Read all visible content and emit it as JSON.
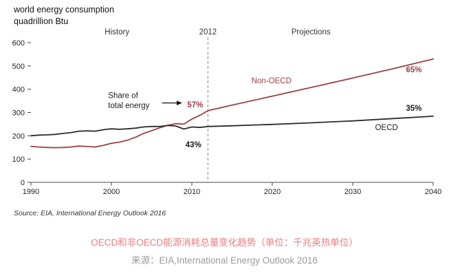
{
  "chart_data": {
    "type": "line",
    "title": "world energy consumption",
    "subtitle": "quadrillion Btu",
    "xlabel": "",
    "ylabel": "quadrillion Btu",
    "x_range": [
      1990,
      2040
    ],
    "y_range": [
      0,
      600
    ],
    "x_ticks": [
      1990,
      2000,
      2010,
      2020,
      2030,
      2040
    ],
    "y_ticks": [
      0,
      100,
      200,
      300,
      400,
      500,
      600
    ],
    "grid": false,
    "divider_year": 2012,
    "header_labels": [
      {
        "text": "History",
        "year": 2000.7
      },
      {
        "text": "2012",
        "year": 2012
      },
      {
        "text": "Projections",
        "year": 2024.8
      }
    ],
    "series": [
      {
        "name": "Non-OECD",
        "color": "#9e3e44",
        "points": [
          [
            1990,
            155
          ],
          [
            1991,
            152
          ],
          [
            1992,
            150
          ],
          [
            1993,
            149
          ],
          [
            1994,
            150
          ],
          [
            1995,
            152
          ],
          [
            1996,
            156
          ],
          [
            1997,
            154
          ],
          [
            1998,
            152
          ],
          [
            1999,
            159
          ],
          [
            2000,
            168
          ],
          [
            2001,
            173
          ],
          [
            2002,
            181
          ],
          [
            2003,
            194
          ],
          [
            2004,
            210
          ],
          [
            2005,
            222
          ],
          [
            2006,
            234
          ],
          [
            2007,
            245
          ],
          [
            2008,
            252
          ],
          [
            2009,
            250
          ],
          [
            2010,
            272
          ],
          [
            2011,
            288
          ],
          [
            2012,
            308
          ],
          [
            2015,
            332
          ],
          [
            2020,
            370
          ],
          [
            2025,
            409
          ],
          [
            2030,
            448
          ],
          [
            2035,
            488
          ],
          [
            2040,
            530
          ]
        ]
      },
      {
        "name": "OECD",
        "color": "#2b2b2b",
        "points": [
          [
            1990,
            200
          ],
          [
            1991,
            203
          ],
          [
            1992,
            204
          ],
          [
            1993,
            206
          ],
          [
            1994,
            210
          ],
          [
            1995,
            214
          ],
          [
            1996,
            220
          ],
          [
            1997,
            221
          ],
          [
            1998,
            220
          ],
          [
            1999,
            226
          ],
          [
            2000,
            230
          ],
          [
            2001,
            228
          ],
          [
            2002,
            230
          ],
          [
            2003,
            233
          ],
          [
            2004,
            238
          ],
          [
            2005,
            240
          ],
          [
            2006,
            240
          ],
          [
            2007,
            244
          ],
          [
            2008,
            242
          ],
          [
            2009,
            229
          ],
          [
            2010,
            238
          ],
          [
            2011,
            236
          ],
          [
            2012,
            240
          ],
          [
            2015,
            243
          ],
          [
            2020,
            249
          ],
          [
            2025,
            256
          ],
          [
            2030,
            264
          ],
          [
            2035,
            274
          ],
          [
            2040,
            284
          ]
        ]
      }
    ],
    "annotations": [
      {
        "text": "Non-OECD",
        "year": 2019.9,
        "value": 426,
        "color": "#9e3e44",
        "anchor": "middle",
        "bold": false
      },
      {
        "text": "OECD",
        "year": 2034.2,
        "value": 225,
        "color": "#1a1a1a",
        "anchor": "middle",
        "bold": false
      },
      {
        "text": "65%",
        "year": 2037.6,
        "value": 473,
        "color": "#9e3e44",
        "anchor": "middle",
        "bold": true
      },
      {
        "text": "35%",
        "year": 2037.6,
        "value": 307,
        "color": "#1a1a1a",
        "anchor": "middle",
        "bold": true
      },
      {
        "text": "57%",
        "year": 2011.4,
        "value": 322,
        "color": "#9e3e44",
        "anchor": "end",
        "bold": true
      },
      {
        "text": "43%",
        "year": 2010.2,
        "value": 151,
        "color": "#1a1a1a",
        "anchor": "middle",
        "bold": true
      },
      {
        "text": "Share of",
        "year": 1999.6,
        "value": 362,
        "color": "#1a1a1a",
        "anchor": "start",
        "bold": false
      },
      {
        "text": "total energy",
        "year": 1999.6,
        "value": 319,
        "color": "#1a1a1a",
        "anchor": "start",
        "bold": false
      }
    ],
    "arrow": {
      "from_year": 2006.3,
      "to_year": 2008.7,
      "value": 341
    }
  },
  "source_note": "Source:  EIA, International Energy Outlook 2016",
  "captions": {
    "line1": "OECD和非OECD能源消耗总量变化趋势（单位：千兆英热单位）",
    "color1": "#ed7b7b",
    "line2": "来源：EIA,International Energy Outlook 2016",
    "color2": "#9b9b9b"
  }
}
